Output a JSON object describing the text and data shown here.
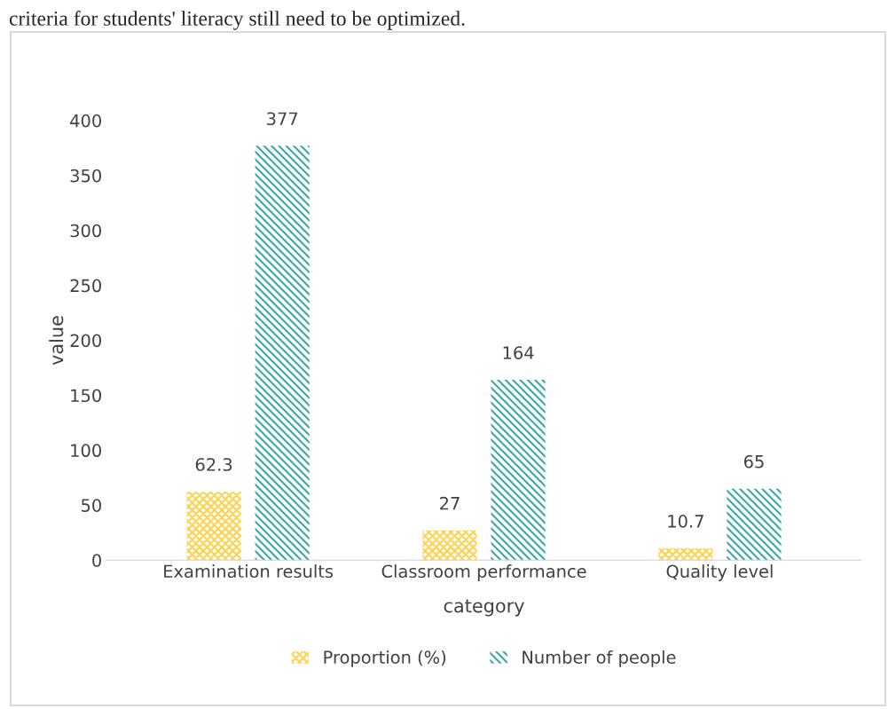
{
  "chart_data": {
    "type": "bar",
    "annotations": [
      "criteria for students' literacy still need to be optimized."
    ],
    "xlabel": "category",
    "ylabel": "value",
    "categories": [
      "Examination results",
      "Classroom performance",
      "Quality level"
    ],
    "series": [
      {
        "name": "Proportion (%)",
        "color": "#ffd24d",
        "values": [
          62.3,
          27,
          10.7
        ]
      },
      {
        "name": "Number of people",
        "color": "#3aa8a8",
        "values": [
          377,
          164,
          65
        ]
      }
    ],
    "ylim": [
      0,
      400
    ],
    "yticks": [
      0,
      50,
      100,
      150,
      200,
      250,
      300,
      350,
      400
    ],
    "data_labels": true,
    "grid": false,
    "legend": "bottom"
  }
}
